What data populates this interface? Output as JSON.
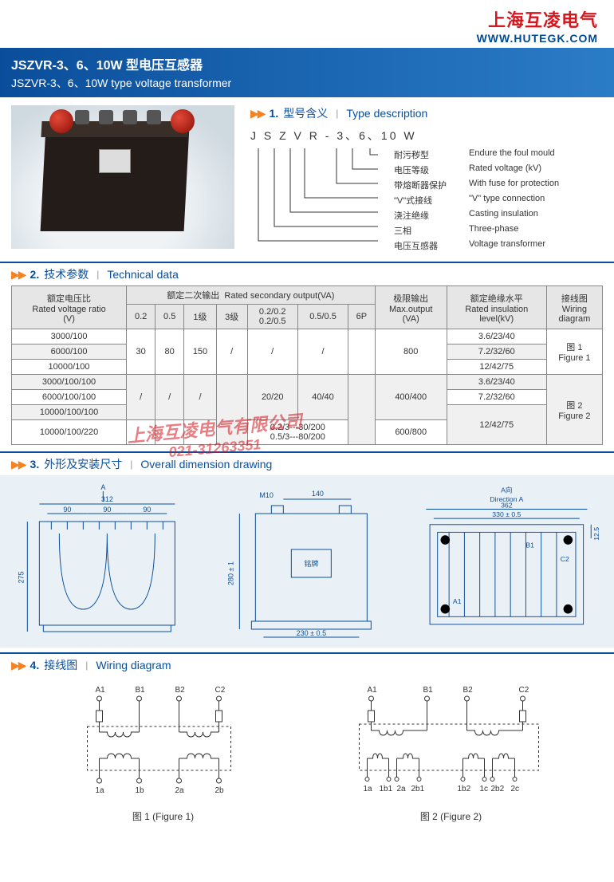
{
  "logo": {
    "cn": "上海互凌电气",
    "url": "WWW.HUTEGK.COM"
  },
  "header": {
    "title_cn": "JSZVR-3、6、10W 型电压互感器",
    "title_en": "JSZVR-3、6、10W type voltage transformer"
  },
  "watermark": {
    "company": "上海互凌电气有限公司",
    "phone": "021-31263351"
  },
  "sections": {
    "s1": {
      "num": "1.",
      "cn": "型号含义",
      "en": "Type description"
    },
    "s2": {
      "num": "2.",
      "cn": "技术参数",
      "en": "Technical data"
    },
    "s3": {
      "num": "3.",
      "cn": "外形及安装尺寸",
      "en": "Overall dimension drawing"
    },
    "s4": {
      "num": "4.",
      "cn": "接线图",
      "en": "Wiring diagram"
    }
  },
  "type_desc": {
    "model": "J S Z V R - 3、6、10 W",
    "rows": [
      {
        "cn": "耐污秽型",
        "en": "Endure the foul mould"
      },
      {
        "cn": "电压等级",
        "en": "Rated voltage (kV)"
      },
      {
        "cn": "带熔断器保护",
        "en": "With fuse for protection"
      },
      {
        "cn": "\"V\"式接线",
        "en": "\"V\" type connection"
      },
      {
        "cn": "浇注绝缘",
        "en": "Casting insulation"
      },
      {
        "cn": "三相",
        "en": "Three-phase"
      },
      {
        "cn": "电压互感器",
        "en": "Voltage transformer"
      }
    ]
  },
  "tech_table": {
    "head": {
      "ratio_cn": "额定电压比",
      "ratio_en": "Rated voltage ratio",
      "ratio_unit": "(V)",
      "sec_cn": "额定二次输出",
      "sec_en": "Rated secondary output(VA)",
      "sub": [
        "0.2",
        "0.5",
        "1级",
        "3级",
        "0.2/0.2\n0.2/0.5",
        "0.5/0.5",
        "6P"
      ],
      "max_cn": "极限输出",
      "max_en": "Max.output",
      "max_unit": "(VA)",
      "insul_cn": "额定绝缘水平",
      "insul_en": "Rated insulation",
      "insul_unit": "level(kV)",
      "wiring_cn": "接线图",
      "wiring_en": "Wiring",
      "wiring_unit": "diagram"
    },
    "rows": [
      {
        "ratio": "3000/100",
        "c": [
          "30",
          "80",
          "150",
          "/",
          "/",
          "/",
          ""
        ],
        "max": "800",
        "ins": "3.6/23/40",
        "wd": "图 1\nFigure 1"
      },
      {
        "ratio": "6000/100",
        "c": [
          "",
          "",
          "",
          "",
          "",
          "",
          ""
        ],
        "max": "",
        "ins": "7.2/32/60",
        "wd": ""
      },
      {
        "ratio": "10000/100",
        "c": [
          "",
          "",
          "",
          "",
          "",
          "",
          ""
        ],
        "max": "",
        "ins": "12/42/75",
        "wd": ""
      },
      {
        "ratio": "3000/100/100",
        "c": [
          "/",
          "/",
          "/",
          "",
          "20/20",
          "40/40",
          ""
        ],
        "max": "400/400",
        "ins": "3.6/23/40",
        "wd": "图 2\nFigure 2"
      },
      {
        "ratio": "6000/100/100",
        "c": [
          "",
          "",
          "",
          "",
          "",
          "",
          ""
        ],
        "max": "",
        "ins": "7.2/32/60",
        "wd": ""
      },
      {
        "ratio": "10000/100/100",
        "c": [
          "",
          "",
          "",
          "",
          "",
          "",
          ""
        ],
        "max": "",
        "ins": "12/42/75",
        "wd": ""
      },
      {
        "ratio": "10000/100/220",
        "c": [
          "",
          "",
          "",
          "",
          "0.2/3---30/200\n0.5/3---80/200",
          "",
          ""
        ],
        "max": "600/800",
        "ins": "",
        "wd": ""
      }
    ]
  },
  "dim": {
    "view1": {
      "A": "A",
      "w": "312",
      "s": "90",
      "h": "280 ± 1"
    },
    "view2": {
      "m": "M10",
      "t": "140",
      "np": "铭牌",
      "b": "230 ± 0.5",
      "tot": "275"
    },
    "view3": {
      "dir": "A向",
      "dir_en": "Direction A",
      "w": "362",
      "iw": "330 ± 0.5",
      "h": "12.5",
      "A1": "A1",
      "B1": "B1",
      "C2": "C2"
    }
  },
  "wiring": {
    "fig1": {
      "caption": "图 1 (Figure 1)",
      "top": [
        "A1",
        "B1",
        "B2",
        "C2"
      ],
      "bot": [
        "1a",
        "1b",
        "2a",
        "2b"
      ]
    },
    "fig2": {
      "caption": "图 2 (Figure 2)",
      "top": [
        "A1",
        "B1",
        "B2",
        "C2"
      ],
      "bot": [
        "1a",
        "1b1",
        "2a",
        "2b1",
        "1b2",
        "1c",
        "2b2",
        "2c"
      ]
    }
  },
  "colors": {
    "brand": "#0a4e9b",
    "accent": "#f58220",
    "logo_red": "#d4161e"
  }
}
